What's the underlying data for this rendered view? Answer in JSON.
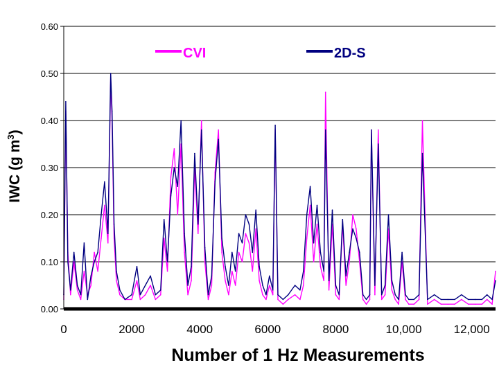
{
  "chart_data": {
    "type": "line",
    "title": "",
    "xlabel": "Number of 1 Hz Measurements",
    "ylabel_main": "IWC (g m",
    "ylabel_sup": "3",
    "ylabel_close": ")",
    "xlim": [
      0,
      12700
    ],
    "ylim": [
      0,
      0.6
    ],
    "y_ticks": [
      "0.00",
      "0.10",
      "0.20",
      "0.30",
      "0.40",
      "0.50",
      "0.60"
    ],
    "y_tick_values": [
      0,
      0.1,
      0.2,
      0.3,
      0.4,
      0.5,
      0.6
    ],
    "x_ticks": [
      "0",
      "2000",
      "4000",
      "6000",
      "8000",
      "10,000",
      "12,000"
    ],
    "x_tick_values": [
      0,
      2000,
      4000,
      6000,
      8000,
      10000,
      12000
    ],
    "grid": "horizontal",
    "legend_position": "top",
    "colors": {
      "cvi": "#ff00ff",
      "twods": "#000080",
      "axis": "#000000",
      "grid": "#000000"
    },
    "series": [
      {
        "name": "CVI",
        "key": "cvi",
        "x": [
          0,
          60,
          120,
          200,
          300,
          400,
          500,
          600,
          700,
          800,
          900,
          1000,
          1100,
          1200,
          1300,
          1380,
          1420,
          1480,
          1550,
          1650,
          1800,
          2000,
          2150,
          2250,
          2400,
          2550,
          2700,
          2850,
          2950,
          3050,
          3150,
          3250,
          3350,
          3450,
          3550,
          3650,
          3750,
          3850,
          3950,
          4050,
          4150,
          4250,
          4350,
          4450,
          4550,
          4650,
          4750,
          4850,
          4950,
          5050,
          5150,
          5250,
          5350,
          5450,
          5550,
          5650,
          5750,
          5850,
          5950,
          6050,
          6150,
          6220,
          6300,
          6450,
          6600,
          6800,
          6950,
          7050,
          7150,
          7250,
          7350,
          7450,
          7550,
          7650,
          7700,
          7800,
          7900,
          8000,
          8100,
          8200,
          8300,
          8400,
          8500,
          8600,
          8700,
          8800,
          8900,
          9000,
          9050,
          9150,
          9250,
          9350,
          9450,
          9550,
          9650,
          9750,
          9850,
          9950,
          10050,
          10150,
          10300,
          10450,
          10550,
          10700,
          10900,
          11100,
          11300,
          11500,
          11700,
          11900,
          12100,
          12300,
          12450,
          12600,
          12700
        ],
        "values": [
          0.02,
          0.42,
          0.12,
          0.03,
          0.1,
          0.04,
          0.02,
          0.08,
          0.03,
          0.05,
          0.12,
          0.08,
          0.15,
          0.22,
          0.14,
          0.49,
          0.4,
          0.15,
          0.06,
          0.03,
          0.02,
          0.02,
          0.06,
          0.02,
          0.03,
          0.05,
          0.02,
          0.03,
          0.15,
          0.08,
          0.28,
          0.34,
          0.2,
          0.35,
          0.12,
          0.03,
          0.06,
          0.3,
          0.16,
          0.4,
          0.1,
          0.02,
          0.05,
          0.29,
          0.38,
          0.12,
          0.06,
          0.03,
          0.08,
          0.05,
          0.12,
          0.1,
          0.16,
          0.14,
          0.08,
          0.17,
          0.06,
          0.03,
          0.02,
          0.05,
          0.03,
          0.38,
          0.02,
          0.01,
          0.02,
          0.03,
          0.02,
          0.05,
          0.15,
          0.22,
          0.1,
          0.18,
          0.09,
          0.06,
          0.46,
          0.04,
          0.18,
          0.03,
          0.02,
          0.18,
          0.05,
          0.1,
          0.2,
          0.17,
          0.1,
          0.02,
          0.01,
          0.02,
          0.38,
          0.03,
          0.38,
          0.02,
          0.03,
          0.17,
          0.04,
          0.02,
          0.01,
          0.1,
          0.02,
          0.01,
          0.01,
          0.02,
          0.4,
          0.01,
          0.02,
          0.01,
          0.01,
          0.01,
          0.02,
          0.01,
          0.01,
          0.01,
          0.02,
          0.01,
          0.08
        ],
        "_color_note": "uses colors.cvi"
      },
      {
        "name": "2D-S",
        "key": "twods",
        "x": [
          0,
          60,
          120,
          200,
          300,
          400,
          500,
          600,
          700,
          800,
          900,
          1000,
          1100,
          1200,
          1300,
          1380,
          1420,
          1480,
          1550,
          1650,
          1800,
          2000,
          2150,
          2250,
          2400,
          2550,
          2700,
          2850,
          2950,
          3050,
          3150,
          3250,
          3350,
          3450,
          3550,
          3650,
          3750,
          3850,
          3950,
          4050,
          4150,
          4250,
          4350,
          4450,
          4550,
          4650,
          4750,
          4850,
          4950,
          5050,
          5150,
          5250,
          5350,
          5450,
          5550,
          5650,
          5750,
          5850,
          5950,
          6050,
          6150,
          6220,
          6300,
          6450,
          6600,
          6800,
          6950,
          7050,
          7150,
          7250,
          7350,
          7450,
          7550,
          7650,
          7700,
          7800,
          7900,
          8000,
          8100,
          8200,
          8300,
          8400,
          8500,
          8600,
          8700,
          8800,
          8900,
          9000,
          9050,
          9150,
          9250,
          9350,
          9450,
          9550,
          9650,
          9750,
          9850,
          9950,
          10050,
          10150,
          10300,
          10450,
          10550,
          10700,
          10900,
          11100,
          11300,
          11500,
          11700,
          11900,
          12100,
          12300,
          12450,
          12600,
          12700
        ],
        "values": [
          0.03,
          0.44,
          0.1,
          0.04,
          0.12,
          0.05,
          0.03,
          0.14,
          0.02,
          0.07,
          0.1,
          0.12,
          0.2,
          0.27,
          0.16,
          0.5,
          0.42,
          0.18,
          0.08,
          0.04,
          0.02,
          0.03,
          0.09,
          0.03,
          0.05,
          0.07,
          0.03,
          0.04,
          0.19,
          0.1,
          0.24,
          0.3,
          0.26,
          0.4,
          0.16,
          0.05,
          0.09,
          0.33,
          0.18,
          0.38,
          0.13,
          0.03,
          0.07,
          0.27,
          0.36,
          0.15,
          0.09,
          0.05,
          0.12,
          0.08,
          0.16,
          0.14,
          0.2,
          0.18,
          0.12,
          0.21,
          0.09,
          0.05,
          0.03,
          0.07,
          0.04,
          0.39,
          0.03,
          0.02,
          0.03,
          0.05,
          0.04,
          0.08,
          0.2,
          0.26,
          0.14,
          0.22,
          0.12,
          0.08,
          0.38,
          0.06,
          0.21,
          0.05,
          0.03,
          0.19,
          0.07,
          0.12,
          0.17,
          0.15,
          0.12,
          0.03,
          0.02,
          0.03,
          0.38,
          0.05,
          0.35,
          0.03,
          0.05,
          0.2,
          0.06,
          0.03,
          0.02,
          0.12,
          0.03,
          0.02,
          0.02,
          0.03,
          0.33,
          0.02,
          0.03,
          0.02,
          0.02,
          0.02,
          0.03,
          0.02,
          0.02,
          0.02,
          0.03,
          0.02,
          0.06
        ],
        "_color_note": "uses colors.twods"
      }
    ]
  }
}
